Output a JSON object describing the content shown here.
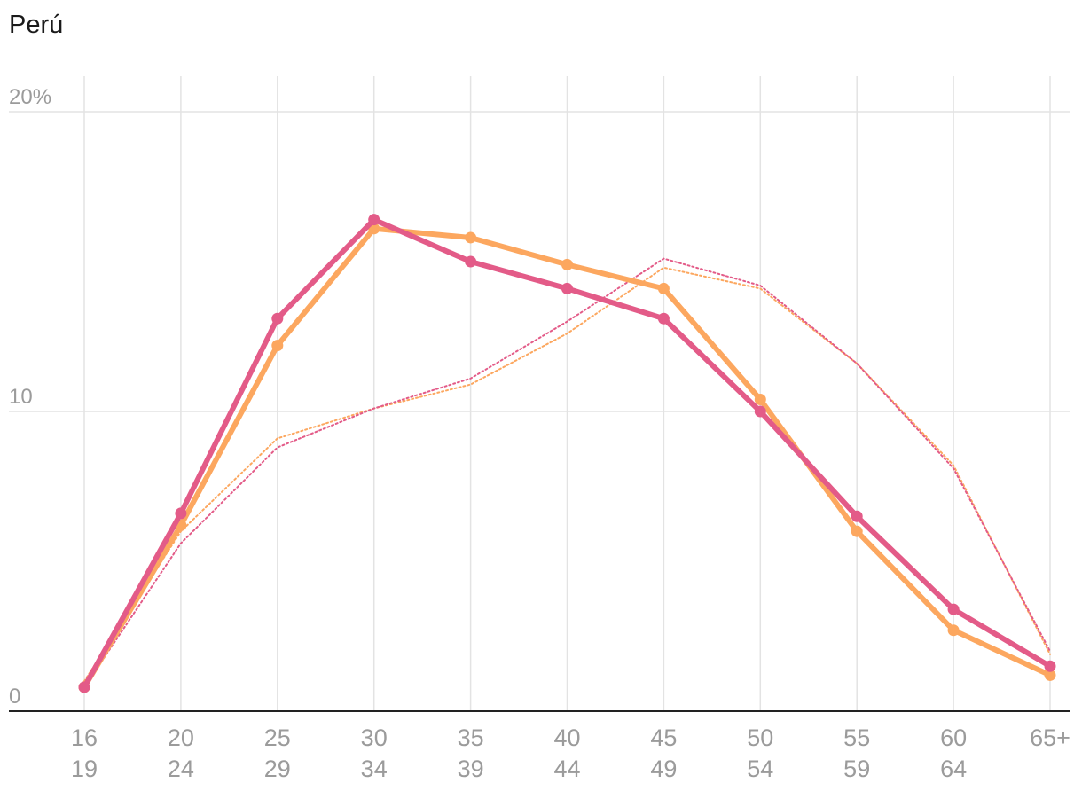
{
  "chart_data": {
    "type": "line",
    "title": "Perú",
    "xlabel": "",
    "ylabel": "",
    "categories": [
      [
        "16",
        "19"
      ],
      [
        "20",
        "24"
      ],
      [
        "25",
        "29"
      ],
      [
        "30",
        "34"
      ],
      [
        "35",
        "39"
      ],
      [
        "40",
        "44"
      ],
      [
        "45",
        "49"
      ],
      [
        "50",
        "54"
      ],
      [
        "55",
        "59"
      ],
      [
        "60",
        "64"
      ],
      [
        "65+",
        ""
      ]
    ],
    "y_ticks": [
      {
        "value": 0,
        "label": "0"
      },
      {
        "value": 10,
        "label": "10"
      },
      {
        "value": 20,
        "label": "20%"
      }
    ],
    "ylim": [
      0,
      20
    ],
    "grid": true,
    "legend": "none",
    "series": [
      {
        "style": "solid",
        "color": "#fca75f",
        "values": [
          0.8,
          6.2,
          12.2,
          16.1,
          15.8,
          14.9,
          14.1,
          10.4,
          6.0,
          2.7,
          1.2
        ]
      },
      {
        "style": "solid",
        "color": "#e35b88",
        "values": [
          0.8,
          6.6,
          13.1,
          16.4,
          15.0,
          14.1,
          13.1,
          10.0,
          6.5,
          3.4,
          1.5
        ]
      },
      {
        "style": "dotted",
        "color": "#fca75f",
        "values": [
          1.0,
          6.0,
          9.1,
          10.1,
          10.9,
          12.6,
          14.8,
          14.1,
          11.6,
          8.2,
          1.9
        ]
      },
      {
        "style": "dotted",
        "color": "#e35b88",
        "values": [
          0.8,
          5.6,
          8.8,
          10.1,
          11.1,
          13.0,
          15.1,
          14.2,
          11.6,
          8.1,
          2.0
        ]
      }
    ]
  }
}
